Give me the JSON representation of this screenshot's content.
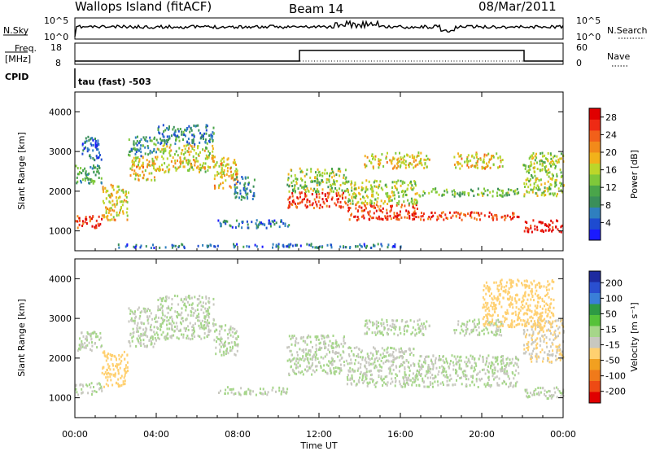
{
  "header": {
    "station": "Wallops Island (fitACF)",
    "beam": "Beam 14",
    "date": "08/Mar/2011"
  },
  "strip": {
    "nsky_label": "N.Sky",
    "nsky_ticks": [
      "10^5",
      "10^0"
    ],
    "nsearch_label": "N.Search",
    "nsearch_ticks": [
      "10^5",
      "10^0"
    ],
    "freq_label": "Freq.",
    "freq_unit": "[MHz]",
    "freq_ticks": [
      "18",
      "8"
    ],
    "nave_label": "Nave",
    "nave_ticks": [
      "60",
      "0"
    ],
    "cpid_label": "CPID",
    "cpid_text": "tau (fast) -503"
  },
  "colors": {
    "power": [
      "#1a1aff",
      "#1e4bd0",
      "#2f7fbf",
      "#3a8f5a",
      "#4aa54a",
      "#7fc83a",
      "#bcd62a",
      "#f2b21a",
      "#f28a1a",
      "#f2601a",
      "#ee2a14",
      "#e00000"
    ],
    "velocity": [
      "#1e2aa0",
      "#2a4fd0",
      "#3a7fd8",
      "#2e9a44",
      "#56c23a",
      "#a6d68a",
      "#c8c8c0",
      "#ffd070",
      "#f2a020",
      "#f07a1a",
      "#ee4a14",
      "#e00000"
    ]
  },
  "chart_data": [
    {
      "type": "heatmap",
      "name": "power",
      "ylabel": "Slant Range [km]",
      "yticks": [
        "1000",
        "2000",
        "3000",
        "4000"
      ],
      "ylim": [
        500,
        4500
      ],
      "xlim": [
        0,
        24
      ],
      "colorbar_label": "Power [dB]",
      "colorbar_ticks": [
        "28",
        "24",
        "20",
        "16",
        "12",
        "8",
        "4"
      ],
      "colorbar_range": [
        0,
        30
      ],
      "bands": [
        {
          "x": [
            0.0,
            1.3
          ],
          "y": [
            1100,
            1400
          ],
          "value": 26
        },
        {
          "x": [
            0.0,
            1.3
          ],
          "y": [
            2200,
            2700
          ],
          "value": 10
        },
        {
          "x": [
            0.3,
            1.3
          ],
          "y": [
            2800,
            3400
          ],
          "value": 6
        },
        {
          "x": [
            1.3,
            2.6
          ],
          "y": [
            1300,
            2200
          ],
          "value": 18
        },
        {
          "x": [
            2.6,
            4.0
          ],
          "y": [
            2300,
            2900
          ],
          "value": 18
        },
        {
          "x": [
            2.6,
            4.0
          ],
          "y": [
            2900,
            3400
          ],
          "value": 9
        },
        {
          "x": [
            4.0,
            6.8
          ],
          "y": [
            2500,
            3200
          ],
          "value": 17
        },
        {
          "x": [
            4.0,
            6.8
          ],
          "y": [
            3200,
            3700
          ],
          "value": 8
        },
        {
          "x": [
            6.8,
            8.0
          ],
          "y": [
            2100,
            2900
          ],
          "value": 18
        },
        {
          "x": [
            7.8,
            8.8
          ],
          "y": [
            1800,
            2400
          ],
          "value": 8
        },
        {
          "x": [
            7.0,
            10.5
          ],
          "y": [
            1100,
            1300
          ],
          "value": 6
        },
        {
          "x": [
            10.4,
            13.3
          ],
          "y": [
            1600,
            2000
          ],
          "value": 26
        },
        {
          "x": [
            10.4,
            13.3
          ],
          "y": [
            2000,
            2600
          ],
          "value": 14
        },
        {
          "x": [
            13.3,
            16.8
          ],
          "y": [
            1300,
            1700
          ],
          "value": 26
        },
        {
          "x": [
            13.3,
            16.8
          ],
          "y": [
            1700,
            2300
          ],
          "value": 15
        },
        {
          "x": [
            14.2,
            17.4
          ],
          "y": [
            2600,
            3000
          ],
          "value": 18
        },
        {
          "x": [
            16.8,
            21.8
          ],
          "y": [
            1300,
            1500
          ],
          "value": 26
        },
        {
          "x": [
            16.8,
            21.8
          ],
          "y": [
            1900,
            2100
          ],
          "value": 13
        },
        {
          "x": [
            18.6,
            21.0
          ],
          "y": [
            2600,
            3000
          ],
          "value": 18
        },
        {
          "x": [
            22.0,
            24.0
          ],
          "y": [
            1000,
            1300
          ],
          "value": 28
        },
        {
          "x": [
            22.0,
            24.0
          ],
          "y": [
            1900,
            3000
          ],
          "value": 15
        },
        {
          "x": [
            2.0,
            16.0
          ],
          "y": [
            600,
            700
          ],
          "value": 6
        }
      ]
    },
    {
      "type": "heatmap",
      "name": "velocity",
      "ylabel": "Slant Range [km]",
      "yticks": [
        "1000",
        "2000",
        "3000",
        "4000"
      ],
      "ylim": [
        500,
        4500
      ],
      "xlim": [
        0,
        24
      ],
      "colorbar_label": "Velocity [m s⁻¹]",
      "colorbar_ticks": [
        "200",
        "100",
        "50",
        "15",
        "-15",
        "-50",
        "-100",
        "-200"
      ],
      "colorbar_range": [
        -250,
        250
      ],
      "bands": [
        {
          "x": [
            0.0,
            1.3
          ],
          "y": [
            1100,
            1400
          ],
          "value": 0
        },
        {
          "x": [
            0.0,
            1.3
          ],
          "y": [
            2200,
            2700
          ],
          "value": 0
        },
        {
          "x": [
            1.3,
            2.6
          ],
          "y": [
            1300,
            2200
          ],
          "value": -60
        },
        {
          "x": [
            2.6,
            4.0
          ],
          "y": [
            2300,
            3300
          ],
          "value": 0
        },
        {
          "x": [
            4.0,
            6.8
          ],
          "y": [
            2500,
            3600
          ],
          "value": 0
        },
        {
          "x": [
            6.8,
            8.0
          ],
          "y": [
            2100,
            2900
          ],
          "value": 0
        },
        {
          "x": [
            7.0,
            10.5
          ],
          "y": [
            1100,
            1300
          ],
          "value": 0
        },
        {
          "x": [
            10.4,
            13.3
          ],
          "y": [
            1600,
            2600
          ],
          "value": 0
        },
        {
          "x": [
            13.3,
            16.8
          ],
          "y": [
            1300,
            2300
          ],
          "value": 0
        },
        {
          "x": [
            14.2,
            17.4
          ],
          "y": [
            2600,
            3000
          ],
          "value": 0
        },
        {
          "x": [
            16.8,
            21.8
          ],
          "y": [
            1300,
            2100
          ],
          "value": 0
        },
        {
          "x": [
            18.6,
            21.0
          ],
          "y": [
            2600,
            3000
          ],
          "value": 0
        },
        {
          "x": [
            22.0,
            24.0
          ],
          "y": [
            1000,
            1300
          ],
          "value": 0
        },
        {
          "x": [
            22.0,
            24.0
          ],
          "y": [
            1900,
            3000
          ],
          "value": -40
        },
        {
          "x": [
            20.0,
            23.5
          ],
          "y": [
            2800,
            4000
          ],
          "value": -60
        }
      ]
    }
  ],
  "xaxis": {
    "ticks": [
      "00:00",
      "04:00",
      "08:00",
      "12:00",
      "16:00",
      "20:00",
      "00:00"
    ],
    "label": "Time UT",
    "range": [
      0,
      24
    ]
  }
}
